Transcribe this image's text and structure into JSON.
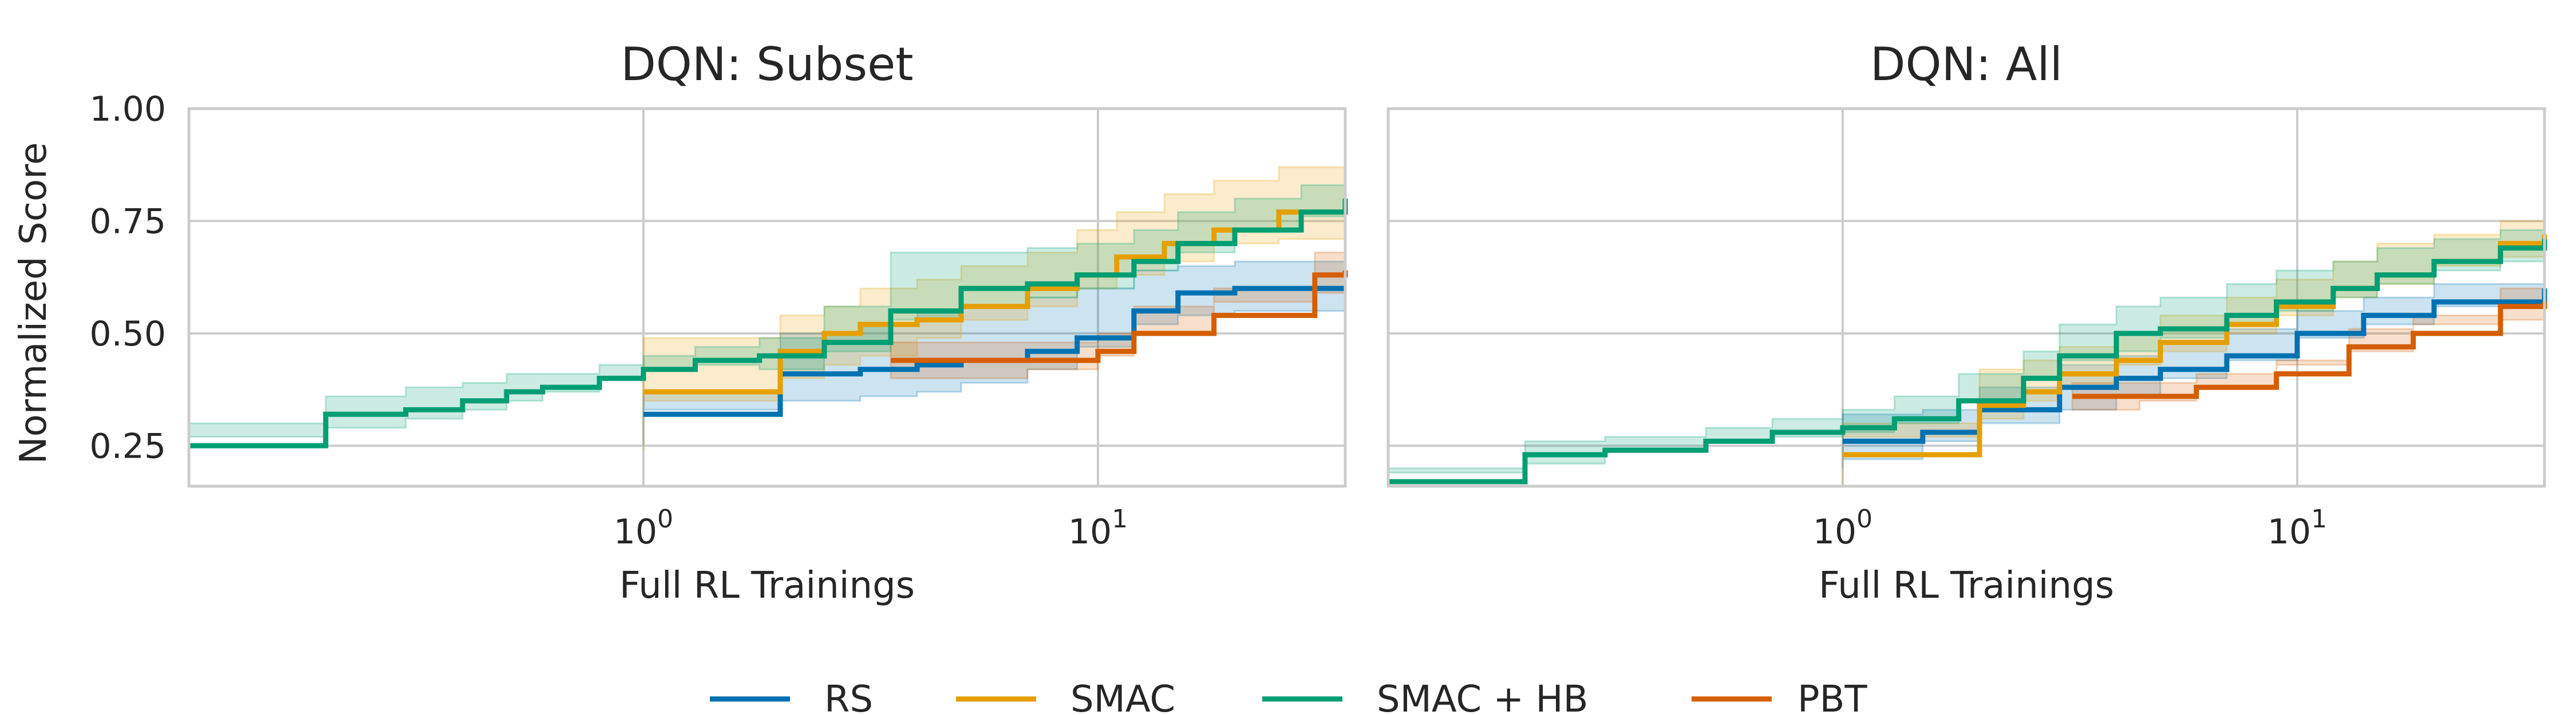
{
  "figure": {
    "ylabel": "Normalized Score",
    "xlabel": "Full RL Trainings"
  },
  "legend": [
    {
      "label": "RS",
      "color": "#0072b2"
    },
    {
      "label": "SMAC",
      "color": "#e69f00"
    },
    {
      "label": "SMAC + HB",
      "color": "#009e73"
    },
    {
      "label": "PBT",
      "color": "#d55e00"
    }
  ],
  "chart_data": [
    {
      "type": "line",
      "title": "DQN: Subset",
      "xlabel": "Full RL Trainings",
      "ylabel": "Normalized Score",
      "x_scale": "log",
      "xlim": [
        0.1,
        35
      ],
      "ylim": [
        0.16,
        1.0
      ],
      "yticks": [
        "0.25",
        "0.50",
        "0.75",
        "1.00"
      ],
      "xticks": [
        {
          "base": "10",
          "exp": "0",
          "value": 1
        },
        {
          "base": "10",
          "exp": "1",
          "value": 10
        }
      ],
      "grid": true,
      "step": true,
      "series": [
        {
          "name": "RS",
          "color": "#0072b2",
          "x": [
            1,
            2,
            3,
            4,
            5,
            7,
            9,
            12,
            15,
            20,
            35
          ],
          "y": [
            0.32,
            0.41,
            0.42,
            0.43,
            0.44,
            0.46,
            0.49,
            0.55,
            0.59,
            0.6,
            0.6
          ],
          "lower": [
            0.25,
            0.33,
            0.35,
            0.36,
            0.37,
            0.39,
            0.42,
            0.47,
            0.52,
            0.54,
            0.55
          ],
          "upper": [
            0.37,
            0.5,
            0.52,
            0.55,
            0.56,
            0.58,
            0.6,
            0.64,
            0.65,
            0.66,
            0.66
          ]
        },
        {
          "name": "SMAC",
          "color": "#e69f00",
          "x": [
            1,
            2,
            2.5,
            3,
            4,
            5,
            7,
            9,
            11,
            14,
            18,
            25,
            35
          ],
          "y": [
            0.37,
            0.46,
            0.5,
            0.52,
            0.53,
            0.56,
            0.6,
            0.63,
            0.67,
            0.7,
            0.73,
            0.77,
            0.79
          ],
          "lower": [
            0.24,
            0.35,
            0.4,
            0.43,
            0.45,
            0.49,
            0.53,
            0.56,
            0.6,
            0.63,
            0.66,
            0.7,
            0.71
          ],
          "upper": [
            0.49,
            0.54,
            0.56,
            0.6,
            0.62,
            0.65,
            0.68,
            0.73,
            0.77,
            0.81,
            0.84,
            0.87,
            0.88
          ]
        },
        {
          "name": "SMAC + HB",
          "color": "#009e73",
          "x": [
            0.1,
            0.2,
            0.3,
            0.4,
            0.5,
            0.6,
            0.8,
            1,
            1.3,
            1.8,
            2.5,
            3.5,
            5,
            7,
            9,
            12,
            15,
            20,
            28,
            35
          ],
          "y": [
            0.25,
            0.32,
            0.33,
            0.35,
            0.37,
            0.38,
            0.4,
            0.42,
            0.44,
            0.45,
            0.48,
            0.55,
            0.6,
            0.61,
            0.63,
            0.66,
            0.7,
            0.73,
            0.77,
            0.8
          ],
          "lower": [
            0.19,
            0.27,
            0.29,
            0.31,
            0.33,
            0.35,
            0.37,
            0.4,
            0.42,
            0.43,
            0.42,
            0.46,
            0.53,
            0.56,
            0.58,
            0.6,
            0.64,
            0.68,
            0.73,
            0.76
          ],
          "upper": [
            0.3,
            0.36,
            0.38,
            0.39,
            0.41,
            0.41,
            0.43,
            0.45,
            0.47,
            0.49,
            0.56,
            0.68,
            0.68,
            0.69,
            0.7,
            0.73,
            0.77,
            0.8,
            0.83,
            0.84
          ]
        },
        {
          "name": "PBT",
          "color": "#d55e00",
          "x": [
            3.5,
            5,
            7,
            10,
            12,
            18,
            30,
            35
          ],
          "y": [
            0.44,
            0.44,
            0.44,
            0.46,
            0.5,
            0.54,
            0.63,
            0.64
          ],
          "lower": [
            0.4,
            0.4,
            0.4,
            0.42,
            0.45,
            0.5,
            0.57,
            0.59
          ],
          "upper": [
            0.48,
            0.48,
            0.48,
            0.5,
            0.56,
            0.6,
            0.68,
            0.69
          ]
        }
      ]
    },
    {
      "type": "line",
      "title": "DQN: All",
      "xlabel": "Full RL Trainings",
      "ylabel": "",
      "x_scale": "log",
      "xlim": [
        0.1,
        35
      ],
      "ylim": [
        0.16,
        1.0
      ],
      "yticks": [],
      "xticks": [
        {
          "base": "10",
          "exp": "0",
          "value": 1
        },
        {
          "base": "10",
          "exp": "1",
          "value": 10
        }
      ],
      "grid": true,
      "step": true,
      "series": [
        {
          "name": "RS",
          "color": "#0072b2",
          "x": [
            1,
            1.5,
            2,
            3,
            4,
            5,
            7,
            10,
            14,
            20,
            35
          ],
          "y": [
            0.26,
            0.28,
            0.33,
            0.38,
            0.4,
            0.42,
            0.45,
            0.5,
            0.54,
            0.57,
            0.6
          ],
          "lower": [
            0.2,
            0.22,
            0.26,
            0.3,
            0.33,
            0.36,
            0.4,
            0.44,
            0.49,
            0.52,
            0.56
          ],
          "upper": [
            0.32,
            0.33,
            0.38,
            0.43,
            0.45,
            0.48,
            0.51,
            0.55,
            0.58,
            0.61,
            0.63
          ]
        },
        {
          "name": "SMAC",
          "color": "#e69f00",
          "x": [
            1,
            2,
            2.5,
            3,
            4,
            5,
            7,
            9,
            12,
            15,
            20,
            28,
            35
          ],
          "y": [
            0.23,
            0.34,
            0.37,
            0.41,
            0.44,
            0.48,
            0.52,
            0.56,
            0.6,
            0.63,
            0.66,
            0.7,
            0.72
          ],
          "lower": [
            0.16,
            0.27,
            0.31,
            0.35,
            0.38,
            0.43,
            0.46,
            0.5,
            0.54,
            0.58,
            0.61,
            0.65,
            0.67
          ],
          "upper": [
            0.3,
            0.42,
            0.44,
            0.47,
            0.5,
            0.54,
            0.58,
            0.62,
            0.66,
            0.7,
            0.72,
            0.75,
            0.76
          ]
        },
        {
          "name": "SMAC + HB",
          "color": "#009e73",
          "x": [
            0.1,
            0.2,
            0.3,
            0.5,
            0.7,
            1,
            1.3,
            1.8,
            2.5,
            3,
            4,
            5,
            7,
            9,
            12,
            15,
            20,
            28,
            35
          ],
          "y": [
            0.17,
            0.23,
            0.24,
            0.26,
            0.28,
            0.29,
            0.31,
            0.35,
            0.4,
            0.45,
            0.5,
            0.51,
            0.54,
            0.57,
            0.6,
            0.63,
            0.66,
            0.69,
            0.71
          ],
          "lower": [
            0.16,
            0.19,
            0.21,
            0.24,
            0.26,
            0.27,
            0.28,
            0.3,
            0.35,
            0.4,
            0.44,
            0.46,
            0.49,
            0.52,
            0.55,
            0.58,
            0.61,
            0.64,
            0.66
          ],
          "upper": [
            0.2,
            0.26,
            0.27,
            0.29,
            0.31,
            0.33,
            0.36,
            0.41,
            0.46,
            0.52,
            0.56,
            0.58,
            0.61,
            0.64,
            0.66,
            0.69,
            0.71,
            0.73,
            0.75
          ]
        },
        {
          "name": "PBT",
          "color": "#d55e00",
          "x": [
            3.2,
            4.5,
            6,
            9,
            13,
            18,
            28,
            35
          ],
          "y": [
            0.36,
            0.36,
            0.38,
            0.41,
            0.47,
            0.5,
            0.56,
            0.57
          ],
          "lower": [
            0.33,
            0.33,
            0.35,
            0.38,
            0.43,
            0.46,
            0.52,
            0.53
          ],
          "upper": [
            0.39,
            0.39,
            0.41,
            0.44,
            0.51,
            0.54,
            0.6,
            0.61
          ]
        }
      ]
    }
  ]
}
